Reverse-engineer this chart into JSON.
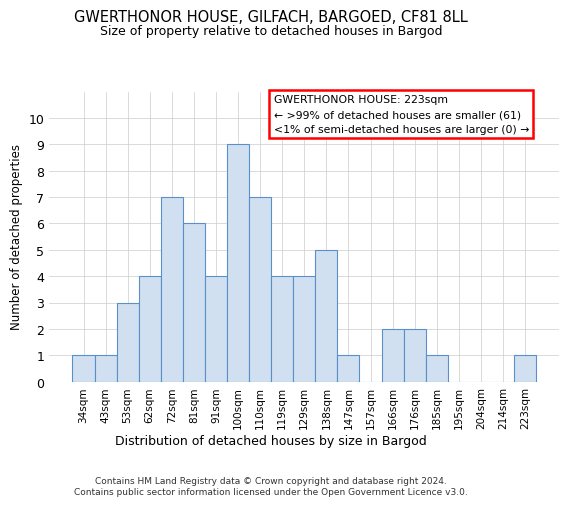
{
  "title": "GWERTHONOR HOUSE, GILFACH, BARGOED, CF81 8LL",
  "subtitle": "Size of property relative to detached houses in Bargod",
  "xlabel": "Distribution of detached houses by size in Bargod",
  "ylabel": "Number of detached properties",
  "categories": [
    "34sqm",
    "43sqm",
    "53sqm",
    "62sqm",
    "72sqm",
    "81sqm",
    "91sqm",
    "100sqm",
    "110sqm",
    "119sqm",
    "129sqm",
    "138sqm",
    "147sqm",
    "157sqm",
    "166sqm",
    "176sqm",
    "185sqm",
    "195sqm",
    "204sqm",
    "214sqm",
    "223sqm"
  ],
  "values": [
    1,
    1,
    3,
    4,
    7,
    6,
    4,
    9,
    7,
    4,
    4,
    5,
    1,
    0,
    2,
    2,
    1,
    0,
    0,
    0,
    1
  ],
  "bar_color": "#d0e0f0",
  "bar_edge_color": "#5b8fc9",
  "ylim": [
    0,
    11
  ],
  "yticks": [
    0,
    1,
    2,
    3,
    4,
    5,
    6,
    7,
    8,
    9,
    10,
    11
  ],
  "grid_color": "#cccccc",
  "annotation_box_text": "GWERTHONOR HOUSE: 223sqm\n← >99% of detached houses are smaller (61)\n<1% of semi-detached houses are larger (0) →",
  "annotation_box_color": "#ff0000",
  "annotation_box_bg": "#ffffff",
  "footer_text": "Contains HM Land Registry data © Crown copyright and database right 2024.\nContains public sector information licensed under the Open Government Licence v3.0.",
  "highlight_bar_index": 20
}
